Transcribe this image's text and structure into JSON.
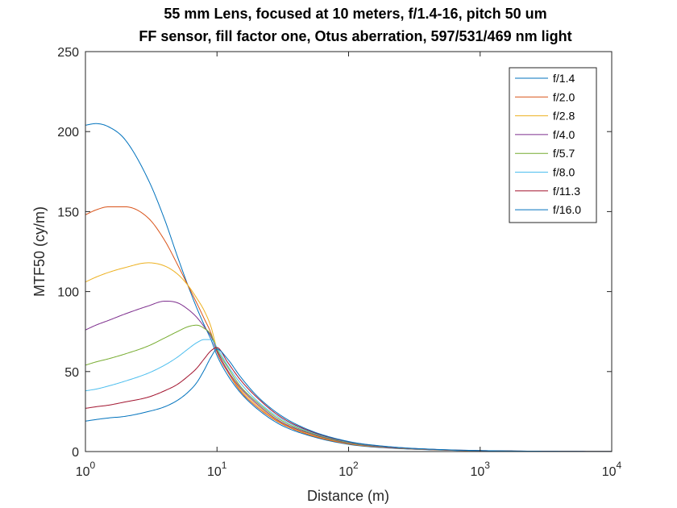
{
  "chart_data": {
    "type": "line",
    "title_line1": "55 mm Lens, focused at 10 meters, f/1.4-16, pitch 50 um",
    "title_line2": "FF sensor, fill factor one, Otus aberration, 597/531/469 nm light",
    "xlabel": "Distance (m)",
    "ylabel": "MTF50 (cy/m)",
    "xscale": "log",
    "xlim": [
      1,
      10000
    ],
    "ylim": [
      0,
      250
    ],
    "grid": false,
    "legend_position": "top-right",
    "x_ticks": [
      {
        "base": "10",
        "exp": "0"
      },
      {
        "base": "10",
        "exp": "1"
      },
      {
        "base": "10",
        "exp": "2"
      },
      {
        "base": "10",
        "exp": "3"
      },
      {
        "base": "10",
        "exp": "4"
      }
    ],
    "y_ticks": [
      "0",
      "50",
      "100",
      "150",
      "200",
      "250"
    ],
    "x": [
      1,
      1.2,
      1.5,
      2,
      3,
      4,
      5,
      6,
      7,
      8,
      9,
      10,
      12,
      15,
      20,
      30,
      50,
      100,
      200,
      500,
      1000,
      2000,
      5000,
      10000
    ],
    "series": [
      {
        "name": "f/1.4",
        "color": "#0072BD",
        "values": [
          204,
          205,
          203,
          195,
          170,
          145,
          122,
          104,
          90,
          79,
          70,
          60,
          48,
          37,
          27,
          17,
          10,
          4.5,
          2.2,
          0.9,
          0.45,
          0.22,
          0.09,
          0.05
        ]
      },
      {
        "name": "f/2.0",
        "color": "#D95319",
        "values": [
          148,
          151,
          153,
          153,
          146,
          132,
          117,
          104,
          93,
          83,
          74,
          62,
          50,
          38,
          28,
          18,
          10.5,
          4.8,
          2.4,
          1.0,
          0.5,
          0.25,
          0.1,
          0.05
        ]
      },
      {
        "name": "f/2.8",
        "color": "#EDB120",
        "values": [
          106,
          109,
          112,
          115,
          118,
          116,
          111,
          104,
          96,
          88,
          78,
          64,
          51,
          39,
          29,
          18.5,
          11,
          5,
          2.5,
          1.0,
          0.5,
          0.25,
          0.1,
          0.05
        ]
      },
      {
        "name": "f/4.0",
        "color": "#7E2F8E",
        "values": [
          76,
          79,
          82,
          86,
          91,
          94,
          93,
          89,
          84,
          78,
          72,
          63,
          51,
          40,
          30,
          19,
          11.5,
          5.3,
          2.6,
          1.05,
          0.52,
          0.26,
          0.1,
          0.05
        ]
      },
      {
        "name": "f/5.7",
        "color": "#77AC30",
        "values": [
          54,
          56,
          58,
          61,
          66,
          71,
          75,
          78,
          79,
          77,
          73,
          64,
          53,
          41,
          31,
          20,
          12,
          5.6,
          2.8,
          1.1,
          0.55,
          0.27,
          0.11,
          0.05
        ]
      },
      {
        "name": "f/8.0",
        "color": "#4DBEEE",
        "values": [
          38,
          39,
          41,
          44,
          49,
          54,
          59,
          64,
          68,
          70,
          70,
          65,
          54,
          43,
          32,
          21,
          12.5,
          5.9,
          2.9,
          1.15,
          0.57,
          0.28,
          0.11,
          0.06
        ]
      },
      {
        "name": "f/11.3",
        "color": "#A2142F",
        "values": [
          27,
          28,
          29,
          31,
          34,
          38,
          42,
          47,
          52,
          58,
          63,
          65,
          56,
          45,
          34,
          22,
          13,
          6.1,
          3.0,
          1.2,
          0.6,
          0.3,
          0.12,
          0.06
        ]
      },
      {
        "name": "f/16.0",
        "color": "#0072BD",
        "values": [
          19,
          20,
          21,
          22,
          25,
          28,
          32,
          37,
          43,
          51,
          59,
          64,
          58,
          47,
          35,
          23,
          13.5,
          6.3,
          3.1,
          1.25,
          0.62,
          0.31,
          0.12,
          0.06
        ]
      }
    ]
  }
}
